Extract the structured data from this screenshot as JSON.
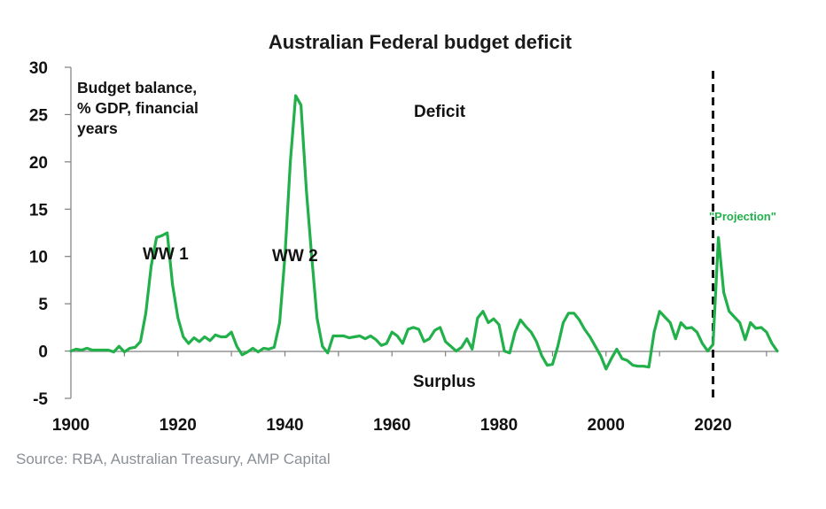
{
  "chart_data": {
    "type": "line",
    "title": "Australian Federal budget deficit",
    "ylabel_note": [
      "Budget balance,",
      "% GDP, financial",
      "years"
    ],
    "xlabel": "",
    "xlim": [
      1900,
      2032
    ],
    "ylim": [
      -5,
      30
    ],
    "x_ticks": [
      1900,
      1920,
      1940,
      1960,
      1980,
      2000,
      2020
    ],
    "y_ticks": [
      -5,
      0,
      5,
      10,
      15,
      20,
      25,
      30
    ],
    "projection_line_x": 2020,
    "annotations": {
      "deficit": "Deficit",
      "surplus": "Surplus",
      "ww1": "WW 1",
      "ww2": "WW 2",
      "projection": "\"Projection\""
    },
    "series": [
      {
        "name": "Budget balance, % GDP",
        "color": "#22b04b",
        "x": [
          1900,
          1901,
          1902,
          1903,
          1904,
          1905,
          1906,
          1907,
          1908,
          1909,
          1910,
          1911,
          1912,
          1913,
          1914,
          1915,
          1916,
          1917,
          1918,
          1919,
          1920,
          1921,
          1922,
          1923,
          1924,
          1925,
          1926,
          1927,
          1928,
          1929,
          1930,
          1931,
          1932,
          1933,
          1934,
          1935,
          1936,
          1937,
          1938,
          1939,
          1940,
          1941,
          1942,
          1943,
          1944,
          1945,
          1946,
          1947,
          1948,
          1949,
          1950,
          1951,
          1952,
          1953,
          1954,
          1955,
          1956,
          1957,
          1958,
          1959,
          1960,
          1961,
          1962,
          1963,
          1964,
          1965,
          1966,
          1967,
          1968,
          1969,
          1970,
          1971,
          1972,
          1973,
          1974,
          1975,
          1976,
          1977,
          1978,
          1979,
          1980,
          1981,
          1982,
          1983,
          1984,
          1985,
          1986,
          1987,
          1988,
          1989,
          1990,
          1991,
          1992,
          1993,
          1994,
          1995,
          1996,
          1997,
          1998,
          1999,
          2000,
          2001,
          2002,
          2003,
          2004,
          2005,
          2006,
          2007,
          2008,
          2009,
          2010,
          2011,
          2012,
          2013,
          2014,
          2015,
          2016,
          2017,
          2018,
          2019,
          2020,
          2021,
          2022,
          2023,
          2024,
          2025,
          2026,
          2027,
          2028,
          2029,
          2030,
          2031,
          2032
        ],
        "values": [
          0,
          0.2,
          0.1,
          0.3,
          0.1,
          0.1,
          0.1,
          0.1,
          -0.1,
          0.5,
          -0.1,
          0.3,
          0.4,
          1.0,
          4.0,
          9.0,
          12.0,
          12.2,
          12.5,
          7.0,
          3.5,
          1.5,
          0.8,
          1.4,
          1.0,
          1.5,
          1.1,
          1.7,
          1.5,
          1.5,
          2.0,
          0.5,
          -0.4,
          -0.1,
          0.3,
          -0.1,
          0.3,
          0.2,
          0.4,
          3.0,
          10.0,
          20.0,
          27.0,
          26.0,
          17.0,
          10.0,
          3.5,
          0.5,
          -0.2,
          1.6,
          1.6,
          1.6,
          1.4,
          1.5,
          1.6,
          1.3,
          1.6,
          1.2,
          0.6,
          0.8,
          2.0,
          1.6,
          0.8,
          2.3,
          2.5,
          2.3,
          1.0,
          1.3,
          2.2,
          2.5,
          1.0,
          0.5,
          0,
          0.4,
          1.3,
          0.2,
          3.5,
          4.2,
          3.0,
          3.4,
          2.8,
          0,
          -0.2,
          2.0,
          3.3,
          2.6,
          2.0,
          1.0,
          -0.5,
          -1.5,
          -1.4,
          0.5,
          3.0,
          4.0,
          4.0,
          3.3,
          2.3,
          1.5,
          0.5,
          -0.5,
          -1.9,
          -0.8,
          0.2,
          -0.8,
          -1.0,
          -1.5,
          -1.6,
          -1.6,
          -1.7,
          2.0,
          4.2,
          3.6,
          3.0,
          1.3,
          3.0,
          2.4,
          2.5,
          2.0,
          0.8,
          0,
          0.7,
          12.0,
          6.2,
          4.2,
          3.6,
          3.0,
          1.2,
          3.0,
          2.4,
          2.5,
          2.0,
          0.8,
          0
        ]
      }
    ]
  },
  "source": "Source: RBA, Australian Treasury, AMP Capital"
}
